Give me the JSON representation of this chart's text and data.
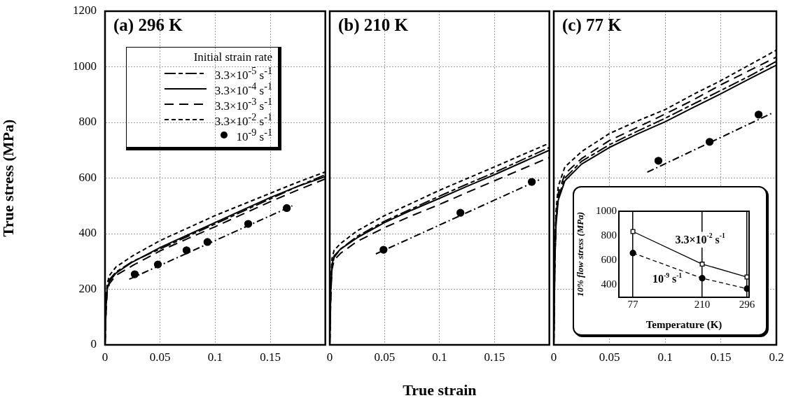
{
  "chart_data": [
    {
      "type": "line",
      "title": "(a) 296 K",
      "ylabel": "True stress (MPa)",
      "legend_title": "Initial strain rate",
      "legend": "top left",
      "grid": true,
      "tick_labels": "xy",
      "xlim": [
        0,
        0.2
      ],
      "xticks": [
        0,
        0.05,
        0.1,
        0.15
      ],
      "ylim": [
        0,
        1200
      ],
      "yticks": [
        0,
        200,
        400,
        600,
        800,
        1000,
        1200
      ],
      "x": [
        0,
        0.001,
        0.002,
        0.004,
        0.01,
        0.025,
        0.05,
        0.075,
        0.1,
        0.125,
        0.15,
        0.175,
        0.2
      ],
      "series": [
        {
          "name": "3.3×10$^{-5}$ s$^{-1}$",
          "color": "#000000",
          "line_style": "longshort",
          "marker": "none",
          "values": [
            0,
            150,
            205,
            235,
            262,
            300,
            345,
            390,
            435,
            480,
            525,
            570,
            612
          ]
        },
        {
          "name": "3.3×10$^{-4}$ s$^{-1}$",
          "color": "#000000",
          "line_style": "solid",
          "marker": "none",
          "values": [
            0,
            140,
            200,
            228,
            258,
            298,
            350,
            395,
            440,
            485,
            530,
            570,
            605
          ]
        },
        {
          "name": "3.3×10$^{-3}$ s$^{-1}$",
          "color": "#000000",
          "line_style": "longdash",
          "marker": "none",
          "values": [
            0,
            130,
            190,
            220,
            250,
            285,
            338,
            382,
            425,
            470,
            515,
            557,
            597
          ]
        },
        {
          "name": "3.3×10$^{-2}$ s$^{-1}$",
          "color": "#000000",
          "line_style": "dashed",
          "marker": "none",
          "values": [
            0,
            160,
            220,
            250,
            280,
            320,
            375,
            420,
            465,
            505,
            545,
            585,
            622
          ]
        },
        {
          "type": "scatter",
          "name": "10$^{-9}$ s$^{-1}$",
          "color": "#000000",
          "marker": "circle",
          "x": [
            0.027,
            0.048,
            0.074,
            0.093,
            0.13,
            0.165
          ],
          "values": [
            254,
            289,
            340,
            370,
            435,
            492
          ]
        },
        {
          "type": "line",
          "color": "#000000",
          "line_style": "dashdot",
          "marker": "none",
          "x": [
            0.022,
            0.17
          ],
          "values": [
            236,
            500
          ]
        }
      ]
    },
    {
      "type": "line",
      "title": "(b) 210 K",
      "xlabel": "True strain",
      "grid": true,
      "tick_labels": "x",
      "xlim": [
        0,
        0.2
      ],
      "xticks": [
        0,
        0.05,
        0.1,
        0.15
      ],
      "ylim": [
        0,
        1200
      ],
      "yticks": [
        0,
        200,
        400,
        600,
        800,
        1000,
        1200
      ],
      "x": [
        0,
        0.001,
        0.002,
        0.004,
        0.01,
        0.025,
        0.05,
        0.075,
        0.1,
        0.125,
        0.15,
        0.175,
        0.2
      ],
      "series": [
        {
          "color": "#000000",
          "line_style": "longshort",
          "marker": "none",
          "values": [
            0,
            200,
            280,
            315,
            345,
            390,
            445,
            490,
            535,
            578,
            620,
            665,
            710
          ]
        },
        {
          "color": "#000000",
          "line_style": "solid",
          "marker": "none",
          "values": [
            0,
            200,
            290,
            320,
            345,
            385,
            440,
            485,
            527,
            570,
            612,
            656,
            700
          ]
        },
        {
          "color": "#000000",
          "line_style": "longdash",
          "marker": "none",
          "values": [
            0,
            180,
            270,
            305,
            330,
            372,
            422,
            465,
            505,
            548,
            590,
            632,
            674
          ]
        },
        {
          "color": "#000000",
          "line_style": "dashed",
          "marker": "none",
          "values": [
            0,
            220,
            310,
            340,
            365,
            410,
            465,
            510,
            556,
            598,
            640,
            683,
            725
          ]
        },
        {
          "type": "scatter",
          "color": "#000000",
          "marker": "circle",
          "x": [
            0.049,
            0.119,
            0.184
          ],
          "values": [
            342,
            475,
            586
          ]
        },
        {
          "type": "line",
          "color": "#000000",
          "line_style": "dashdot",
          "marker": "none",
          "x": [
            0.042,
            0.191
          ],
          "values": [
            327,
            594
          ]
        }
      ]
    },
    {
      "type": "line",
      "title": "(c) 77 K",
      "grid": true,
      "tick_labels": "x",
      "xlim": [
        0,
        0.2
      ],
      "xticks": [
        0,
        0.05,
        0.1,
        0.15,
        0.2
      ],
      "ylim": [
        0,
        1200
      ],
      "yticks": [
        0,
        200,
        400,
        600,
        800,
        1000,
        1200
      ],
      "x": [
        0,
        0.001,
        0.002,
        0.004,
        0.01,
        0.025,
        0.05,
        0.075,
        0.1,
        0.125,
        0.15,
        0.175,
        0.2
      ],
      "series": [
        {
          "color": "#000000",
          "line_style": "longshort",
          "marker": "none",
          "values": [
            0,
            310,
            440,
            530,
            600,
            660,
            720,
            768,
            815,
            865,
            915,
            965,
            1020
          ]
        },
        {
          "color": "#000000",
          "line_style": "solid",
          "marker": "none",
          "values": [
            0,
            300,
            430,
            520,
            590,
            650,
            710,
            758,
            802,
            853,
            903,
            955,
            1006
          ]
        },
        {
          "color": "#000000",
          "line_style": "longdash",
          "marker": "none",
          "values": [
            0,
            320,
            455,
            545,
            615,
            670,
            735,
            782,
            830,
            880,
            935,
            985,
            1035
          ]
        },
        {
          "color": "#000000",
          "line_style": "dashed",
          "marker": "none",
          "values": [
            0,
            350,
            480,
            570,
            640,
            695,
            760,
            805,
            846,
            900,
            950,
            1005,
            1060
          ]
        },
        {
          "type": "scatter",
          "color": "#000000",
          "marker": "circle",
          "x": [
            0.094,
            0.14,
            0.184
          ],
          "values": [
            662,
            730,
            828
          ]
        },
        {
          "type": "line",
          "color": "#000000",
          "line_style": "dashdot",
          "marker": "none",
          "x": [
            0.084,
            0.197
          ],
          "values": [
            621,
            835
          ]
        }
      ]
    },
    {
      "type": "line",
      "xlabel": "Temperature (K)",
      "ylabel": "10% flow stress (MPa)",
      "grid": "x",
      "xlim": [
        50,
        300
      ],
      "xticks": [
        77,
        210,
        296
      ],
      "ylim": [
        300,
        1000
      ],
      "yticks": [
        400,
        600,
        800,
        1000
      ],
      "x": [
        77,
        210,
        296
      ],
      "series": [
        {
          "name": "3.3×10$^{-2}$ s$^{-1}$",
          "color": "#000000",
          "line_style": "solid",
          "marker": "square",
          "values": [
            835,
            570,
            465
          ]
        },
        {
          "name": "10$^{-9}$ s$^{-1}$",
          "color": "#000000",
          "line_style": "dashed",
          "marker": "circle",
          "values": [
            660,
            455,
            370
          ]
        }
      ]
    }
  ]
}
